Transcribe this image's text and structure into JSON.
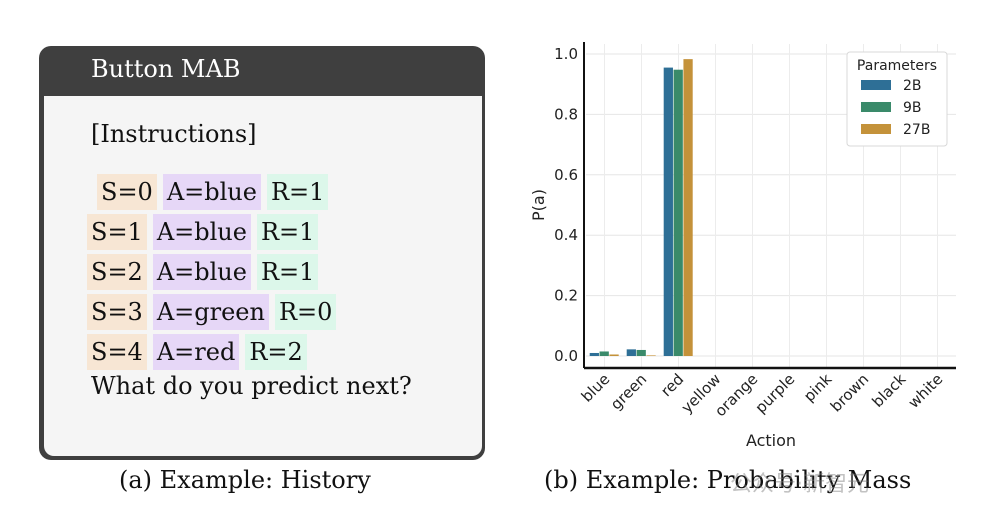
{
  "left_panel": {
    "title": "Button MAB",
    "instructions": "[Instructions]",
    "rows": [
      {
        "s": "S=0",
        "a": "A=blue",
        "r": "R=1"
      },
      {
        "s": "S=1",
        "a": "A=blue",
        "r": "R=1"
      },
      {
        "s": "S=2",
        "a": "A=blue",
        "r": "R=1"
      },
      {
        "s": "S=3",
        "a": "A=green",
        "r": "R=0"
      },
      {
        "s": "S=4",
        "a": "A=red",
        "r": "R=2"
      }
    ],
    "question": "What do you predict next?",
    "caption": "(a)  Example: History"
  },
  "right_panel": {
    "caption": "(b)  Example: Probability Mass",
    "watermark": "公众号·新智元"
  },
  "chart_data": {
    "type": "bar",
    "title": "",
    "xlabel": "Action",
    "ylabel": "P(a)",
    "ylim": [
      0,
      1.0
    ],
    "yticks": [
      "0.0",
      "0.2",
      "0.4",
      "0.6",
      "0.8",
      "1.0"
    ],
    "grid": true,
    "legend_title": "Parameters",
    "legend_position": "top-right",
    "categories": [
      "blue",
      "green",
      "red",
      "yellow",
      "orange",
      "purple",
      "pink",
      "brown",
      "black",
      "white"
    ],
    "series": [
      {
        "name": "2B",
        "color": "#2e6f96",
        "values": [
          0.01,
          0.022,
          0.955,
          0,
          0,
          0,
          0,
          0,
          0,
          0
        ]
      },
      {
        "name": "9B",
        "color": "#3a8a6a",
        "values": [
          0.015,
          0.02,
          0.948,
          0,
          0,
          0,
          0,
          0,
          0,
          0
        ]
      },
      {
        "name": "27B",
        "color": "#c4923a",
        "values": [
          0.005,
          0.002,
          0.983,
          0,
          0,
          0,
          0,
          0,
          0,
          0
        ]
      }
    ]
  }
}
